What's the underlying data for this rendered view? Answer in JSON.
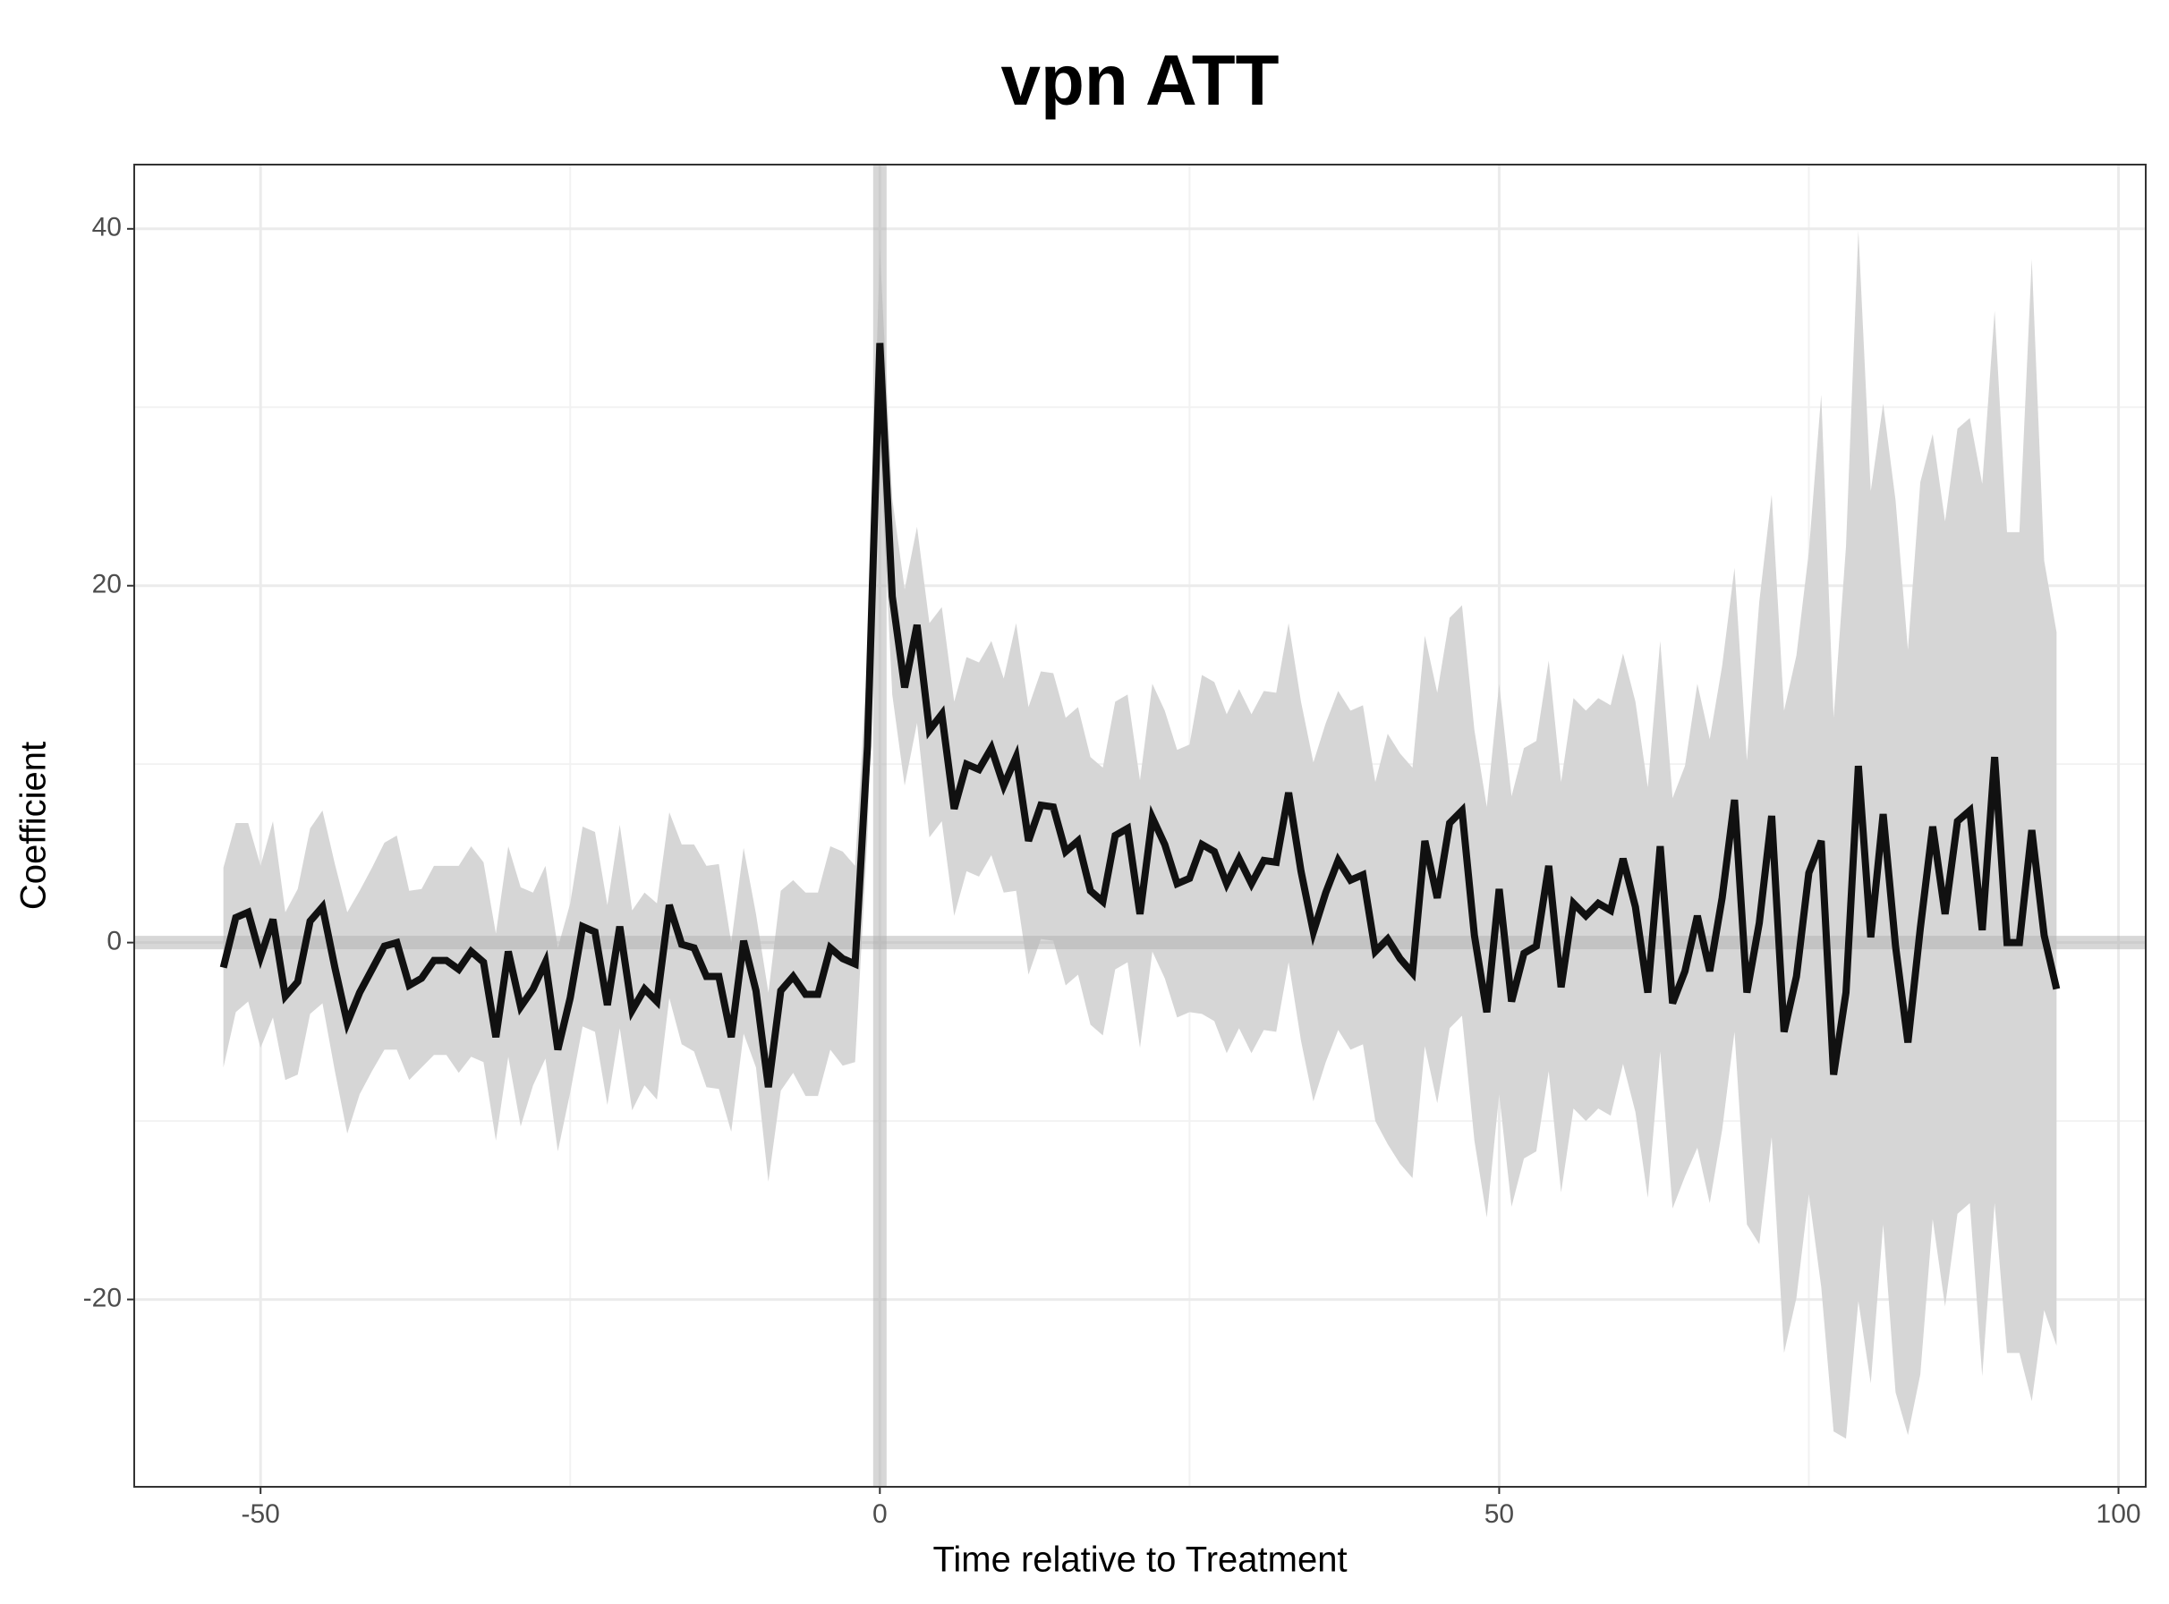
{
  "chart_data": {
    "type": "line",
    "title": "vpn ATT",
    "xlabel": "Time relative to Treatment",
    "ylabel": "Coefficient",
    "x": [
      -53,
      -52,
      -51,
      -50,
      -49,
      -48,
      -47,
      -46,
      -45,
      -44,
      -43,
      -42,
      -41,
      -40,
      -39,
      -38,
      -37,
      -36,
      -35,
      -34,
      -33,
      -32,
      -31,
      -30,
      -29,
      -28,
      -27,
      -26,
      -25,
      -24,
      -23,
      -22,
      -21,
      -20,
      -19,
      -18,
      -17,
      -16,
      -15,
      -14,
      -13,
      -12,
      -11,
      -10,
      -9,
      -8,
      -7,
      -6,
      -5,
      -4,
      -3,
      -2,
      -1,
      0,
      1,
      2,
      3,
      4,
      5,
      6,
      7,
      8,
      9,
      10,
      11,
      12,
      13,
      14,
      15,
      16,
      17,
      18,
      19,
      20,
      21,
      22,
      23,
      24,
      25,
      26,
      27,
      28,
      29,
      30,
      31,
      32,
      33,
      34,
      35,
      36,
      37,
      38,
      39,
      40,
      41,
      42,
      43,
      44,
      45,
      46,
      47,
      48,
      49,
      50,
      51,
      52,
      53,
      54,
      55,
      56,
      57,
      58,
      59,
      60,
      61,
      62,
      63,
      64,
      65,
      66,
      67,
      68,
      69,
      70,
      71,
      72,
      73,
      74,
      75,
      76,
      77,
      78,
      79,
      80,
      81,
      82,
      83,
      84,
      85,
      86,
      87,
      88,
      89,
      90,
      91,
      92,
      93,
      94,
      95
    ],
    "values": [
      -1.4,
      1.4,
      1.7,
      -0.8,
      1.3,
      -3.0,
      -2.2,
      1.2,
      2.0,
      -1.4,
      -4.5,
      -2.8,
      -1.5,
      -0.2,
      0.0,
      -2.4,
      -2.0,
      -1.0,
      -1.0,
      -1.5,
      -0.5,
      -1.1,
      -5.3,
      -0.5,
      -3.6,
      -2.6,
      -1.1,
      -6.0,
      -3.1,
      0.9,
      0.6,
      -3.5,
      0.9,
      -3.8,
      -2.6,
      -3.3,
      2.1,
      -0.1,
      -0.3,
      -1.9,
      -1.9,
      -5.3,
      0.1,
      -2.7,
      -8.1,
      -2.7,
      -1.9,
      -2.9,
      -2.9,
      -0.3,
      -0.9,
      -1.2,
      11.0,
      33.6,
      19.4,
      14.3,
      17.8,
      11.9,
      12.8,
      7.5,
      10,
      9.7,
      10.9,
      8.8,
      10.4,
      5.7,
      7.7,
      7.6,
      5.1,
      5.7,
      2.9,
      2.3,
      6.0,
      6.4,
      1.6,
      7.0,
      5.5,
      3.3,
      3.6,
      5.5,
      5.1,
      3.3,
      4.7,
      3.3,
      4.6,
      4.5,
      8.4,
      4.0,
      0.6,
      2.8,
      4.6,
      3.5,
      3.8,
      -0.5,
      0.2,
      -0.9,
      -1.7,
      5.7,
      2.5,
      6.7,
      7.4,
      0.4,
      -3.9,
      3.0,
      -3.3,
      -0.6,
      -0.2,
      4.3,
      -2.5,
      2.2,
      1.5,
      2.2,
      1.8,
      4.7,
      2.0,
      -2.8,
      5.4,
      -3.4,
      -1.6,
      1.5,
      -1.6,
      2.5,
      8.0,
      -2.8,
      1.1,
      7.1,
      -5.0,
      -1.9,
      3.9,
      5.7,
      -7.4,
      -2.8,
      9.9,
      0.3,
      7.2,
      -0.2,
      -5.6,
      0.8,
      6.5,
      1.6,
      6.8,
      7.4,
      0.7,
      10.4,
      0,
      0,
      6.3,
      0.4,
      -2.6
    ],
    "upper": [
      4.2,
      6.7,
      6.7,
      4.3,
      6.8,
      1.7,
      3.0,
      6.4,
      7.4,
      4.4,
      1.7,
      2.9,
      4.2,
      5.6,
      6.0,
      2.9,
      3.0,
      4.3,
      4.3,
      4.3,
      5.4,
      4.5,
      0.5,
      5.4,
      3.1,
      2.8,
      4.3,
      -0.3,
      2.2,
      6.5,
      6.2,
      2.1,
      6.6,
      1.8,
      2.8,
      2.2,
      7.3,
      5.5,
      5.5,
      4.3,
      4.4,
      0,
      5.3,
      1.6,
      -2.8,
      2.9,
      3.5,
      2.8,
      2.8,
      5.4,
      5.1,
      4.3,
      16,
      38.9,
      24.9,
      19.8,
      23.3,
      17.9,
      18.8,
      13.5,
      16,
      15.7,
      16.9,
      14.8,
      17.9,
      13.2,
      15.2,
      15.1,
      12.6,
      13.2,
      10.4,
      9.8,
      13.5,
      13.9,
      9.1,
      14.5,
      13.0,
      10.8,
      11.1,
      15.0,
      14.6,
      12.8,
      14.2,
      12.8,
      14.1,
      14.0,
      17.9,
      13.5,
      10.1,
      12.3,
      14.1,
      13.0,
      13.3,
      9.0,
      11.7,
      10.6,
      9.8,
      17.2,
      14.0,
      18.2,
      18.9,
      11.9,
      7.6,
      14.5,
      8.2,
      10.9,
      11.3,
      15.8,
      9.0,
      13.7,
      13.0,
      13.7,
      13.3,
      16.2,
      13.5,
      8.7,
      16.9,
      8.1,
      9.9,
      14.5,
      11.4,
      15.5,
      21.0,
      10.2,
      19.1,
      25.1,
      13.0,
      16.1,
      21.9,
      30.7,
      12.6,
      22.2,
      39.9,
      25.3,
      30.2,
      24.8,
      16.4,
      25.8,
      28.5,
      23.6,
      28.8,
      29.4,
      25.7,
      35.4,
      23,
      23,
      38.3,
      21.4,
      17.4
    ],
    "lower": [
      -7.0,
      -3.9,
      -3.3,
      -5.9,
      -4.2,
      -7.7,
      -7.4,
      -4.0,
      -3.4,
      -7.2,
      -10.7,
      -8.5,
      -7.2,
      -6.0,
      -6.0,
      -7.7,
      -7.0,
      -6.3,
      -6.3,
      -7.3,
      -6.4,
      -6.7,
      -11.1,
      -6.4,
      -10.3,
      -8.0,
      -6.5,
      -11.7,
      -8.4,
      -4.7,
      -5.0,
      -9.1,
      -4.8,
      -9.4,
      -8.0,
      -8.8,
      -3.1,
      -5.7,
      -6.1,
      -8.1,
      -8.2,
      -10.6,
      -5.1,
      -7.0,
      -13.4,
      -8.3,
      -7.3,
      -8.6,
      -8.6,
      -6.0,
      -6.9,
      -6.7,
      6,
      28.3,
      13.9,
      8.8,
      12.3,
      5.9,
      6.8,
      1.5,
      4,
      3.7,
      4.9,
      2.8,
      2.9,
      -1.8,
      0.2,
      0.1,
      -2.4,
      -1.8,
      -4.6,
      -5.2,
      -1.5,
      -1.1,
      -5.9,
      -0.5,
      -2.0,
      -4.2,
      -3.9,
      -4.0,
      -4.4,
      -6.2,
      -4.8,
      -6.2,
      -4.9,
      -5.0,
      -1.1,
      -5.5,
      -8.9,
      -6.7,
      -4.9,
      -6.0,
      -5.7,
      -10.0,
      -11.3,
      -12.4,
      -13.2,
      -5.8,
      -9.0,
      -4.8,
      -4.1,
      -11.1,
      -15.4,
      -8.5,
      -14.8,
      -12.1,
      -11.7,
      -7.2,
      -14.0,
      -9.3,
      -10.0,
      -9.3,
      -9.7,
      -6.8,
      -9.5,
      -14.3,
      -6.1,
      -14.9,
      -13.1,
      -11.5,
      -14.6,
      -10.5,
      -5.0,
      -15.8,
      -16.9,
      -10.9,
      -23.0,
      -19.9,
      -14.1,
      -19.3,
      -27.4,
      -27.8,
      -20.1,
      -24.7,
      -15.8,
      -25.2,
      -27.6,
      -24.2,
      -15.5,
      -20.4,
      -15.2,
      -14.6,
      -24.3,
      -14.6,
      -23,
      -23,
      -25.7,
      -20.6,
      -22.6
    ],
    "color": "#111111",
    "band_color": "#d6d6d6",
    "ref_color": "#b0b0b0",
    "hline": 0,
    "vline": 0,
    "xlim": [
      -60.2,
      102.2
    ],
    "ylim": [
      -30.5,
      43.6
    ],
    "xticks": [
      -50,
      0,
      50,
      100
    ],
    "yticks": [
      -20,
      0,
      20,
      40
    ],
    "x_minor_grid": [
      -25,
      25,
      75
    ],
    "y_minor_grid": [
      -10,
      10,
      30
    ],
    "grid": true
  }
}
